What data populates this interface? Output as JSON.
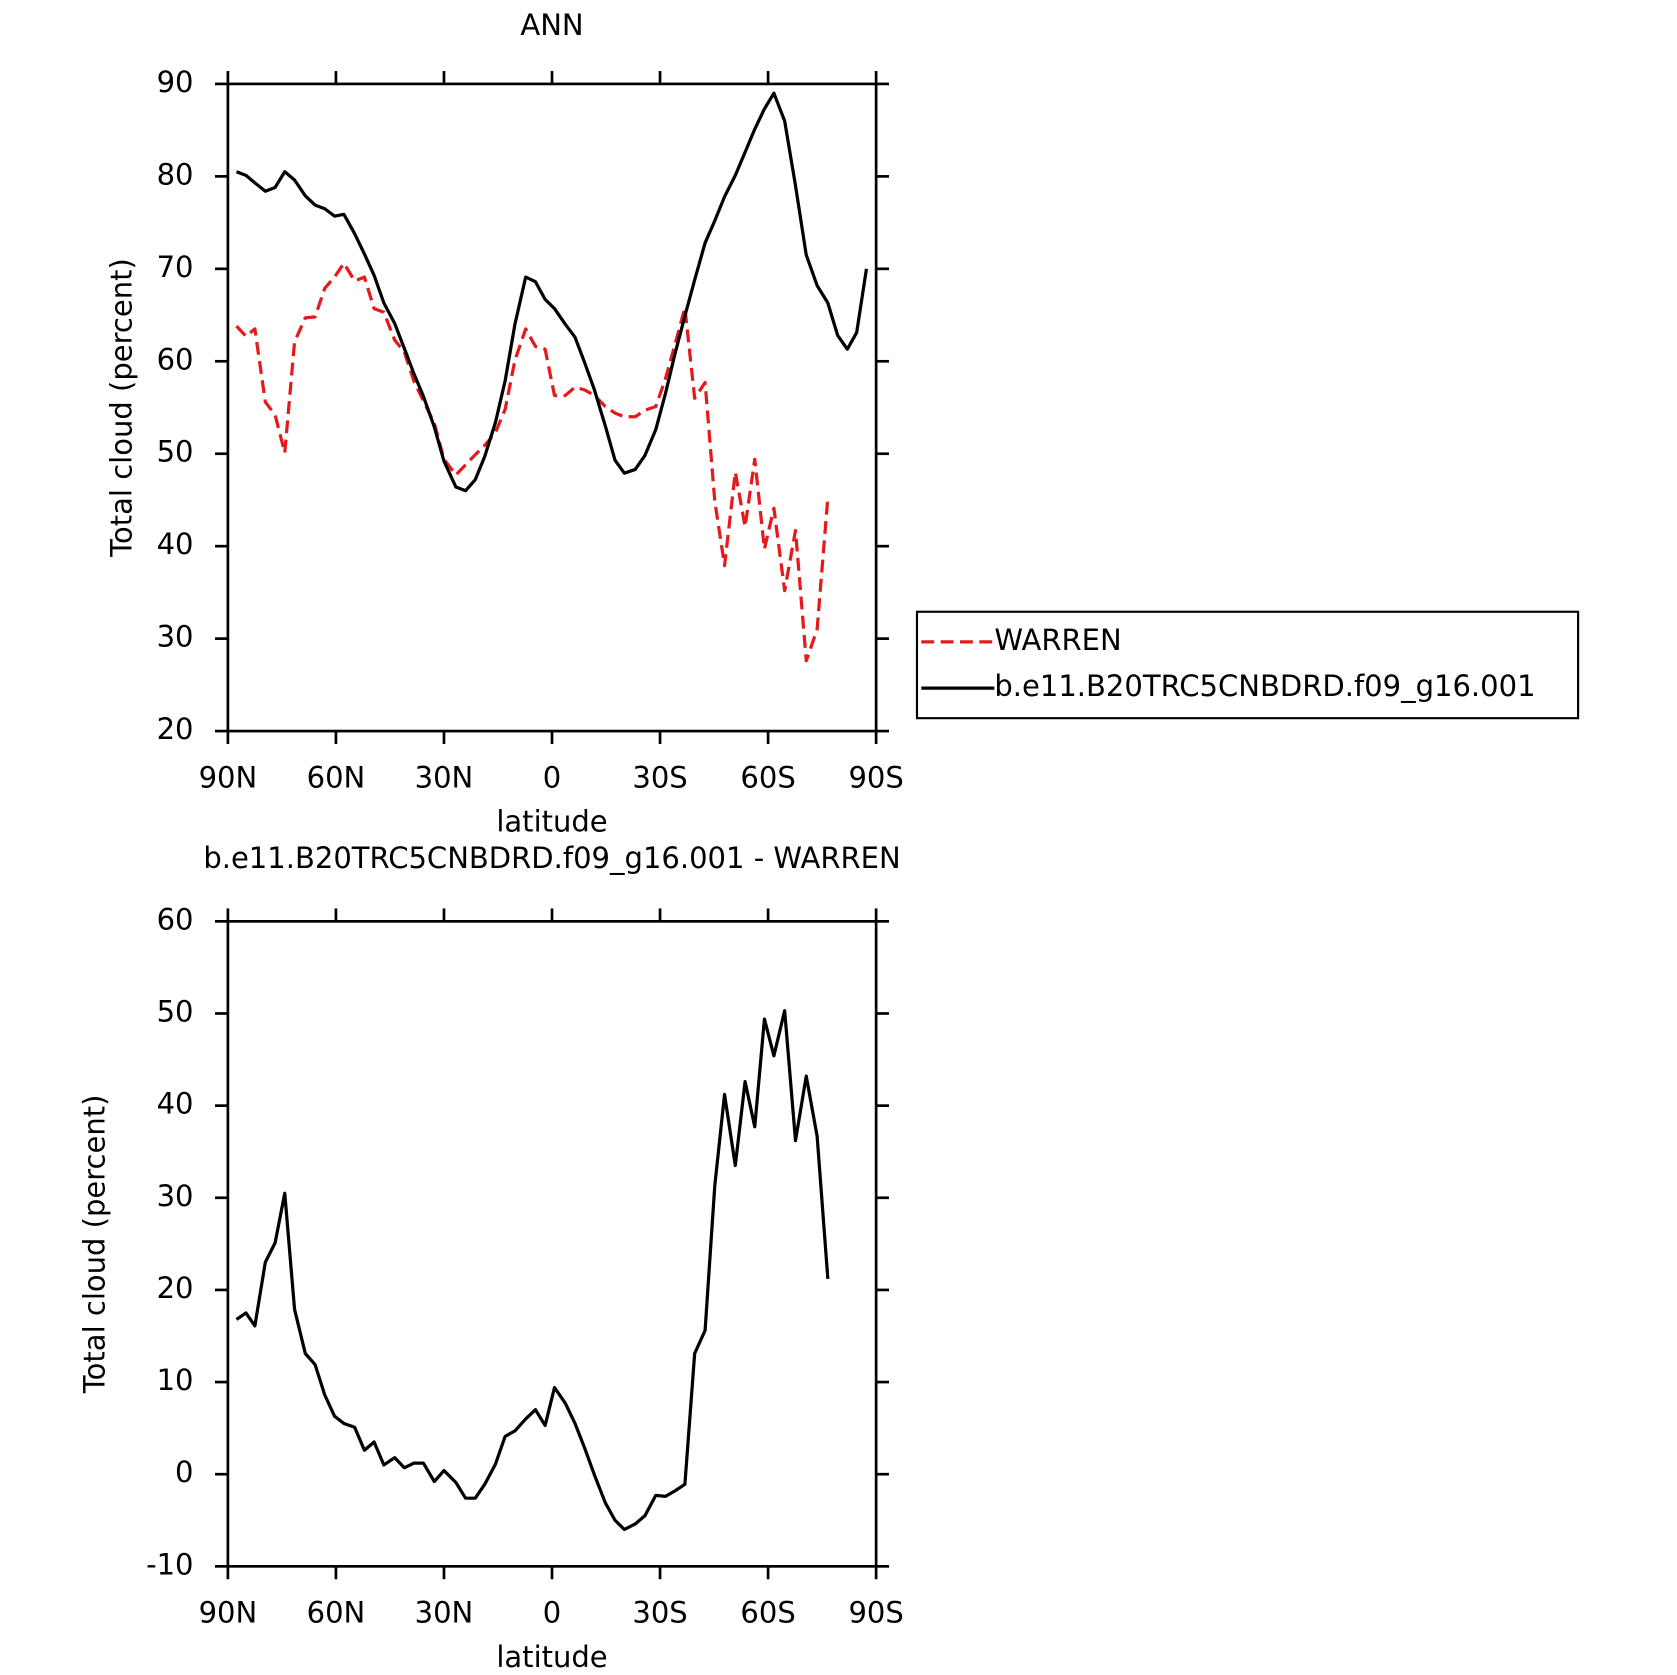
{
  "chart_data": [
    {
      "type": "line",
      "title": "ANN",
      "xlabel": "latitude",
      "ylabel": "Total cloud (percent)",
      "x": [
        87.6,
        85,
        82.5,
        79.6,
        76.9,
        74.2,
        71.5,
        68.5,
        65.8,
        63.1,
        60.4,
        57.8,
        54.8,
        52.1,
        49.4,
        46.7,
        43.7,
        41,
        38.4,
        35.7,
        32.7,
        30,
        26.7,
        24,
        21.3,
        18.7,
        15.7,
        13,
        10.3,
        7.3,
        4.6,
        1.9,
        -0.7,
        -3.7,
        -6.4,
        -9.1,
        -11.8,
        -14.8,
        -17.5,
        -20.1,
        -23.1,
        -25.8,
        -28.8,
        -31.5,
        -34.2,
        -36.9,
        -39.6,
        -42.5,
        -45.2,
        -47.9,
        -50.9,
        -53.6,
        -56.3,
        -59,
        -61.6,
        -64.6,
        -67.6,
        -70.6,
        -73.6,
        -76.6,
        -79.3,
        -82,
        -84.6,
        -87.3
      ],
      "series": [
        {
          "name": "WARREN",
          "color": "#e41a1c",
          "line_style": "dashed",
          "values": [
            63.8,
            62.7,
            63.5,
            55.6,
            54.2,
            50.1,
            62.1,
            64.7,
            64.8,
            67.9,
            69.1,
            70.6,
            68.7,
            69.1,
            65.7,
            65.3,
            62.3,
            61.0,
            57.9,
            55.7,
            53.3,
            49.4,
            47.7,
            48.8,
            49.9,
            50.9,
            52.3,
            54.8,
            60.1,
            63.5,
            61.6,
            61.3,
            56.3,
            56.3,
            57.2,
            56.9,
            56.3,
            55.1,
            54.4,
            54.0,
            54.0,
            54.7,
            55.1,
            58.1,
            61.9,
            65.8,
            56.0,
            57.7,
            44.9,
            37.9,
            48.0,
            42.1,
            49.4,
            39.7,
            44.1,
            35.2,
            41.7,
            27.6,
            31.0,
            45.3,
            null,
            null,
            null,
            null
          ]
        },
        {
          "name": "b.e11.B20TRC5CNBDRD.f09_g16.001",
          "color": "#000000",
          "line_style": "solid",
          "values": [
            80.5,
            80.1,
            79.3,
            78.4,
            78.8,
            80.5,
            79.6,
            77.9,
            76.9,
            76.5,
            75.7,
            75.9,
            73.8,
            71.6,
            69.3,
            66.3,
            64.1,
            61.4,
            58.7,
            56.2,
            52.9,
            49.2,
            46.4,
            46.0,
            47.2,
            49.7,
            53.4,
            57.9,
            64.0,
            69.1,
            68.6,
            66.7,
            65.7,
            64.0,
            62.6,
            59.8,
            56.9,
            53.0,
            49.3,
            47.9,
            48.3,
            49.8,
            52.6,
            56.5,
            60.9,
            64.9,
            68.8,
            72.8,
            75.2,
            77.8,
            80.1,
            82.6,
            85.1,
            87.3,
            89.0,
            86.0,
            79.0,
            71.5,
            68.2,
            66.3,
            62.8,
            61.3,
            63.1,
            70.0
          ]
        }
      ],
      "xlim": [
        90,
        -90
      ],
      "xticks": [
        {
          "value": 90,
          "label": "90N"
        },
        {
          "value": 60,
          "label": "60N"
        },
        {
          "value": 30,
          "label": "30N"
        },
        0,
        {
          "value": -30,
          "label": "30S"
        },
        {
          "value": -60,
          "label": "60S"
        },
        {
          "value": -90,
          "label": "90S"
        }
      ],
      "ylim": [
        20,
        90
      ],
      "yticks": [
        20,
        30,
        40,
        50,
        60,
        70,
        80,
        90
      ],
      "legend": "right"
    },
    {
      "type": "line",
      "title": "b.e11.B20TRC5CNBDRD.f09_g16.001 - WARREN",
      "xlabel": "latitude",
      "ylabel": "Total cloud (percent)",
      "x": [
        87.6,
        85,
        82.5,
        79.6,
        76.9,
        74.2,
        71.5,
        68.5,
        65.8,
        63.1,
        60.4,
        57.8,
        54.8,
        52.1,
        49.4,
        46.7,
        43.7,
        41,
        38.4,
        35.7,
        32.7,
        30,
        26.7,
        24,
        21.3,
        18.7,
        15.7,
        13,
        10.3,
        7.3,
        4.6,
        1.9,
        -0.7,
        -3.7,
        -6.4,
        -9.1,
        -11.8,
        -14.8,
        -17.5,
        -20.1,
        -23.1,
        -25.8,
        -28.8,
        -31.5,
        -34.2,
        -36.9,
        -39.6,
        -42.5,
        -45.2,
        -47.9,
        -50.9,
        -53.6,
        -56.3,
        -59,
        -61.6,
        -64.6,
        -67.6,
        -70.6,
        -73.6,
        -76.6,
        -79.3,
        -82,
        -84.6,
        -87.3
      ],
      "series": [
        {
          "color": "#000000",
          "line_style": "solid",
          "values": [
            16.8,
            17.5,
            16.1,
            23.0,
            25.1,
            30.5,
            17.9,
            13.1,
            11.9,
            8.6,
            6.3,
            5.5,
            5.1,
            2.6,
            3.5,
            1.0,
            1.8,
            0.7,
            1.2,
            1.2,
            -0.8,
            0.4,
            -0.9,
            -2.6,
            -2.6,
            -1.1,
            1.1,
            4.1,
            4.7,
            6.0,
            7.0,
            5.3,
            9.4,
            7.7,
            5.5,
            2.8,
            -0.1,
            -3.1,
            -5.0,
            -6.0,
            -5.4,
            -4.5,
            -2.3,
            -2.4,
            -1.8,
            -1.1,
            13.1,
            15.6,
            31.3,
            41.2,
            33.5,
            42.6,
            37.7,
            49.4,
            45.4,
            50.3,
            36.2,
            43.2,
            36.7,
            21.2,
            null,
            null,
            null,
            null
          ]
        }
      ],
      "xlim": [
        90,
        -90
      ],
      "xticks": [
        {
          "value": 90,
          "label": "90N"
        },
        {
          "value": 60,
          "label": "60N"
        },
        {
          "value": 30,
          "label": "30N"
        },
        0,
        {
          "value": -30,
          "label": "30S"
        },
        {
          "value": -60,
          "label": "60S"
        },
        {
          "value": -90,
          "label": "90S"
        }
      ],
      "ylim": [
        -10,
        60
      ],
      "yticks": [
        -10,
        0,
        10,
        20,
        30,
        40,
        50,
        60
      ]
    }
  ]
}
